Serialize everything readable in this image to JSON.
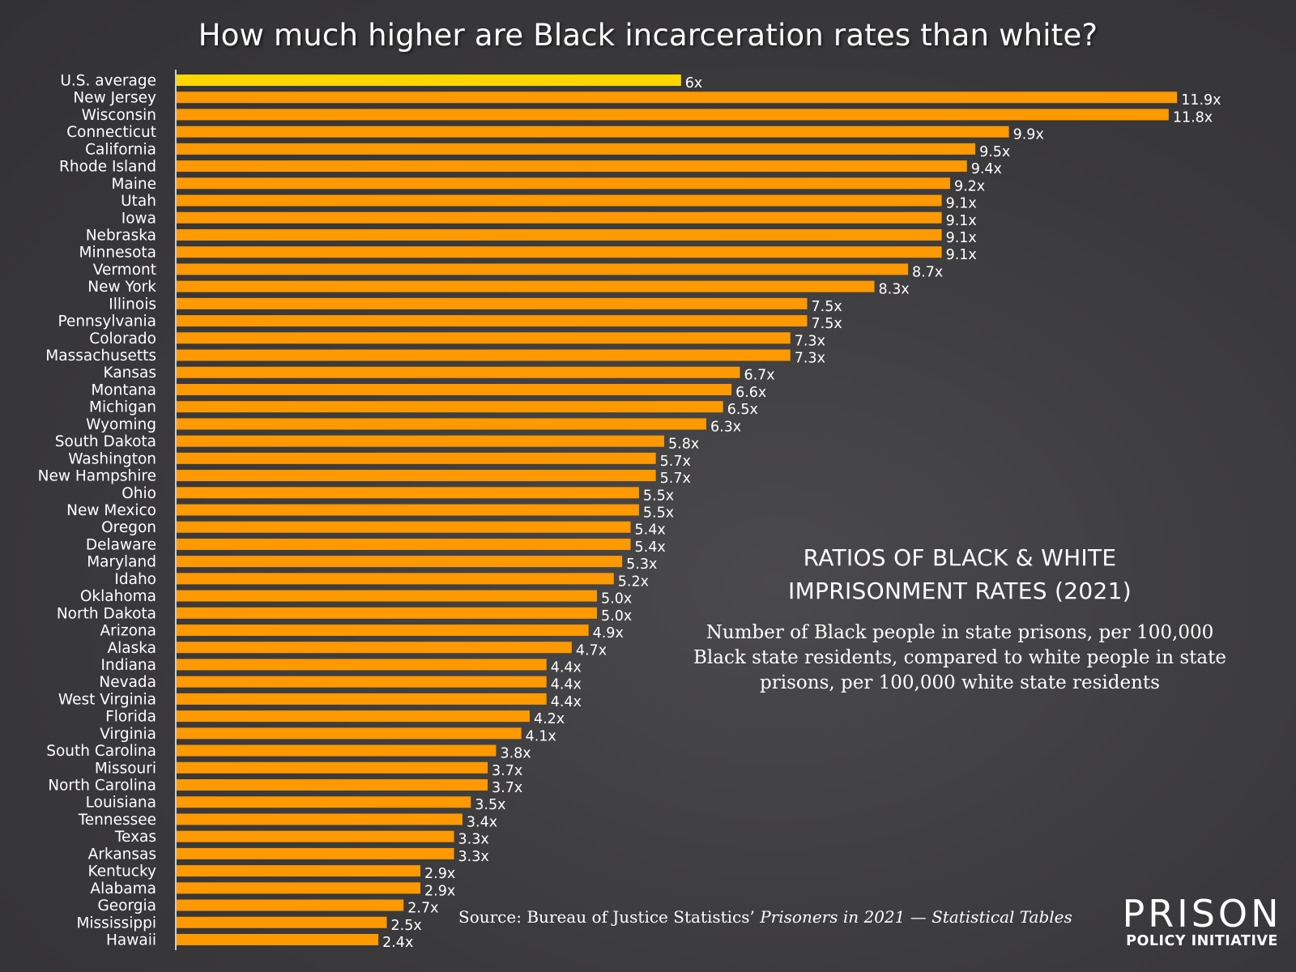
{
  "chart_data": {
    "type": "bar",
    "orientation": "horizontal",
    "title": "How much higher are Black incarceration rates than white?",
    "subtitle_heading": [
      "RATIOS OF BLACK & WHITE",
      "IMPRISONMENT RATES (2021)"
    ],
    "subtitle_description": "Number of Black people in state prisons, per 100,000 Black state residents, compared to white people in state prisons, per 100,000 white state residents",
    "xlabel": "",
    "ylabel": "",
    "value_suffix": "x",
    "grid": false,
    "xlim": [
      0,
      12
    ],
    "highlight_color": "#ffd700",
    "bar_color": "#ff9900",
    "highlight_category": "U.S. average",
    "categories": [
      "U.S. average",
      "New Jersey",
      "Wisconsin",
      "Connecticut",
      "California",
      "Rhode Island",
      "Maine",
      "Utah",
      "Iowa",
      "Nebraska",
      "Minnesota",
      "Vermont",
      "New York",
      "Illinois",
      "Pennsylvania",
      "Colorado",
      "Massachusetts",
      "Kansas",
      "Montana",
      "Michigan",
      "Wyoming",
      "South Dakota",
      "Washington",
      "New Hampshire",
      "Ohio",
      "New Mexico",
      "Oregon",
      "Delaware",
      "Maryland",
      "Idaho",
      "Oklahoma",
      "North Dakota",
      "Arizona",
      "Alaska",
      "Indiana",
      "Nevada",
      "West Virginia",
      "Florida",
      "Virginia",
      "South Carolina",
      "Missouri",
      "North Carolina",
      "Louisiana",
      "Tennessee",
      "Texas",
      "Arkansas",
      "Kentucky",
      "Alabama",
      "Georgia",
      "Mississippi",
      "Hawaii"
    ],
    "values": [
      6,
      11.9,
      11.8,
      9.9,
      9.5,
      9.4,
      9.2,
      9.1,
      9.1,
      9.1,
      9.1,
      8.7,
      8.3,
      7.5,
      7.5,
      7.3,
      7.3,
      6.7,
      6.6,
      6.5,
      6.3,
      5.8,
      5.7,
      5.7,
      5.5,
      5.5,
      5.4,
      5.4,
      5.3,
      5.2,
      5.0,
      5.0,
      4.9,
      4.7,
      4.4,
      4.4,
      4.4,
      4.2,
      4.1,
      3.8,
      3.7,
      3.7,
      3.5,
      3.4,
      3.3,
      3.3,
      2.9,
      2.9,
      2.7,
      2.5,
      2.4
    ],
    "value_labels": [
      "6x",
      "11.9x",
      "11.8x",
      "9.9x",
      "9.5x",
      "9.4x",
      "9.2x",
      "9.1x",
      "9.1x",
      "9.1x",
      "9.1x",
      "8.7x",
      "8.3x",
      "7.5x",
      "7.5x",
      "7.3x",
      "7.3x",
      "6.7x",
      "6.6x",
      "6.5x",
      "6.3x",
      "5.8x",
      "5.7x",
      "5.7x",
      "5.5x",
      "5.5x",
      "5.4x",
      "5.4x",
      "5.3x",
      "5.2x",
      "5.0x",
      "5.0x",
      "4.9x",
      "4.7x",
      "4.4x",
      "4.4x",
      "4.4x",
      "4.2x",
      "4.1x",
      "3.8x",
      "3.7x",
      "3.7x",
      "3.5x",
      "3.4x",
      "3.3x",
      "3.3x",
      "2.9x",
      "2.9x",
      "2.7x",
      "2.5x",
      "2.4x"
    ]
  },
  "source": {
    "prefix": "Source: Bureau of Justice Statistics’ ",
    "italic": "Prisoners in 2021 — Statistical Tables"
  },
  "logo": {
    "top": "PRISON",
    "bottom": "POLICY INITIATIVE"
  }
}
